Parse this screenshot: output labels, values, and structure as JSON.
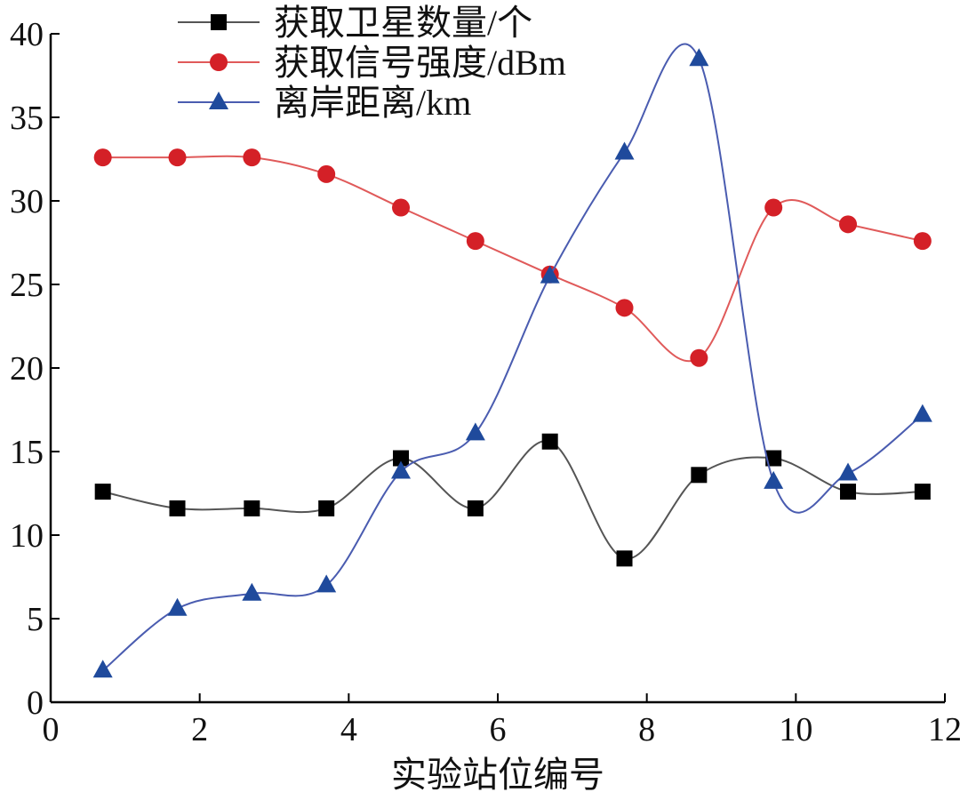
{
  "chart_data": {
    "type": "line",
    "title": "",
    "xlabel": "实验站位编号",
    "ylabel": "",
    "xlim": [
      0,
      12
    ],
    "ylim": [
      0,
      40
    ],
    "xticks": [
      0,
      2,
      4,
      6,
      8,
      10,
      12
    ],
    "yticks": [
      0,
      5,
      10,
      15,
      20,
      25,
      30,
      35,
      40
    ],
    "grid": false,
    "legend_position": "top-center",
    "smooth": true,
    "x": [
      0.7,
      1.7,
      2.7,
      3.7,
      4.7,
      5.7,
      6.7,
      7.7,
      8.7,
      9.7,
      10.7,
      11.7
    ],
    "series": [
      {
        "name": "获取卫星数量/个",
        "color": "#000000",
        "line_color": "#555555",
        "marker": "square",
        "values": [
          12.6,
          11.6,
          11.6,
          11.6,
          14.6,
          11.6,
          15.6,
          8.6,
          13.6,
          14.6,
          12.6,
          12.6
        ]
      },
      {
        "name": "获取信号强度/dBm",
        "color": "#d42027",
        "line_color": "#e05a5a",
        "marker": "circle",
        "values": [
          32.6,
          32.6,
          32.6,
          31.6,
          29.6,
          27.6,
          25.6,
          23.6,
          20.6,
          29.6,
          28.6,
          27.6
        ]
      },
      {
        "name": "离岸距离/km",
        "color": "#1f4a9c",
        "line_color": "#4a5cb0",
        "marker": "triangle",
        "values": [
          1.9,
          5.6,
          6.5,
          7.0,
          13.8,
          16.1,
          25.5,
          32.9,
          38.5,
          13.2,
          13.7,
          17.2
        ]
      }
    ]
  }
}
